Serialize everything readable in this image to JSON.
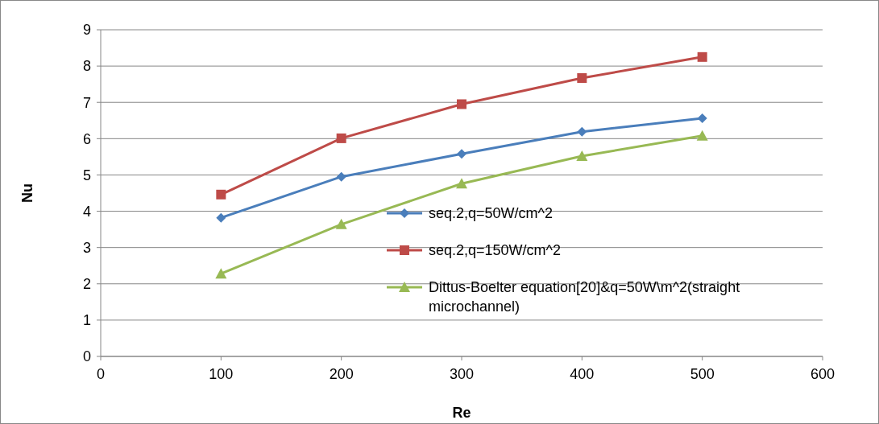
{
  "chart_data": {
    "type": "line",
    "xlabel": "Re",
    "ylabel": "Nu",
    "x": [
      100,
      200,
      300,
      400,
      500
    ],
    "xlim": [
      0,
      600
    ],
    "xticks": [
      0,
      100,
      200,
      300,
      400,
      500,
      600
    ],
    "ylim": [
      0,
      9
    ],
    "yticks": [
      0,
      1,
      2,
      3,
      4,
      5,
      6,
      7,
      8,
      9
    ],
    "grid": "y",
    "legend": "bottom right",
    "series": [
      {
        "name": "seq.2,q=50W/cm^2",
        "color": "#4a7ebb",
        "marker": "diamond",
        "values": [
          3.82,
          4.95,
          5.58,
          6.19,
          6.56
        ]
      },
      {
        "name": "seq.2,q=150W/cm^2",
        "color": "#be4b48",
        "marker": "square",
        "values": [
          4.46,
          6.01,
          6.95,
          7.67,
          8.25
        ]
      },
      {
        "name": "Dittus-Boelter equation[20]&q=50W\\m^2(straight microchannel)",
        "color": "#98b954",
        "marker": "triangle",
        "values": [
          2.28,
          3.64,
          4.76,
          5.52,
          6.08
        ]
      }
    ]
  }
}
